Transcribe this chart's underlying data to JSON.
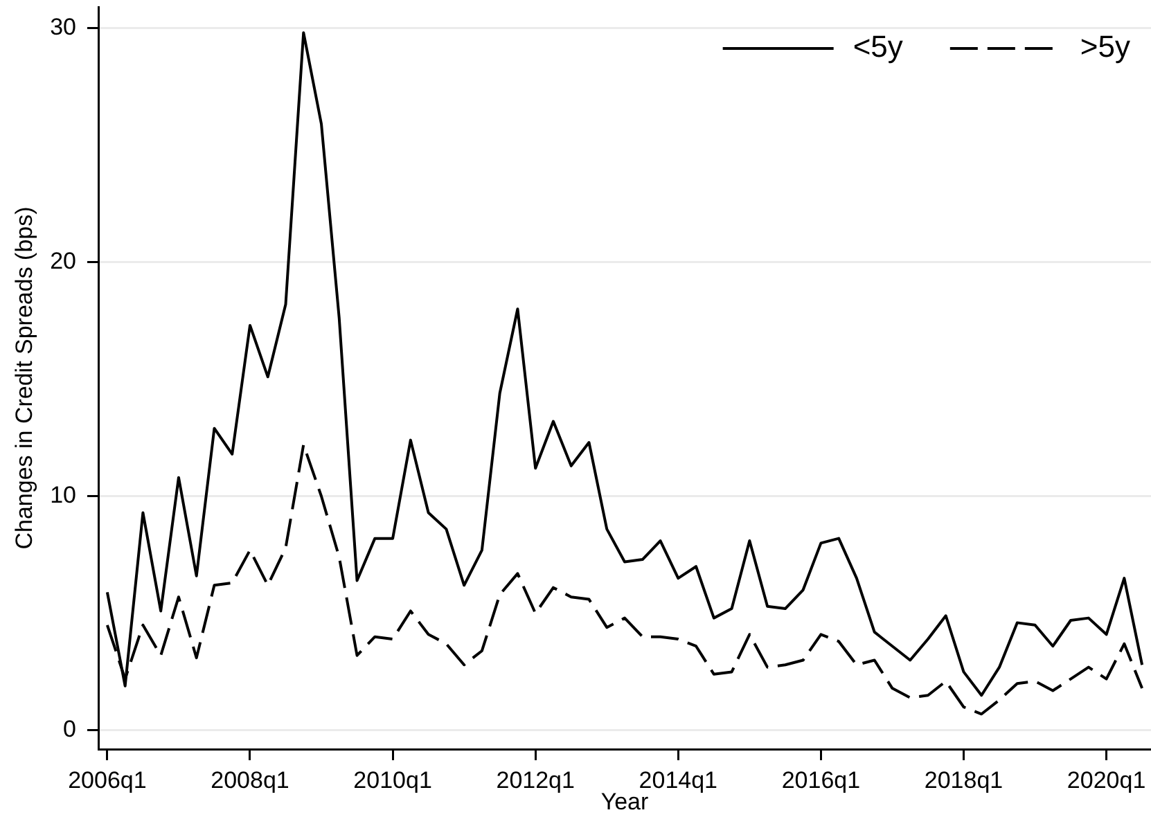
{
  "chart_data": {
    "type": "line",
    "xlabel": "Year",
    "ylabel": "Changes in Credit Spreads (bps)",
    "categories": [
      "2006q1",
      null,
      null,
      null,
      null,
      null,
      null,
      null,
      "2008q1",
      null,
      null,
      null,
      null,
      null,
      null,
      null,
      "2010q1",
      null,
      null,
      null,
      null,
      null,
      null,
      null,
      "2012q1",
      null,
      null,
      null,
      null,
      null,
      null,
      null,
      "2014q1",
      null,
      null,
      null,
      null,
      null,
      null,
      null,
      "2016q1",
      null,
      null,
      null,
      null,
      null,
      null,
      null,
      "2018q1",
      null,
      null,
      null,
      null,
      null,
      null,
      null,
      "2020q1",
      null,
      null
    ],
    "series": [
      {
        "name": "<5y",
        "color": "#000000",
        "line_style": "solid",
        "values": [
          5.9,
          1.9,
          9.3,
          5.1,
          10.8,
          6.6,
          12.9,
          11.8,
          17.3,
          15.1,
          18.2,
          29.8,
          25.9,
          17.6,
          6.4,
          8.2,
          8.2,
          12.4,
          9.3,
          8.6,
          6.2,
          7.7,
          14.4,
          18.0,
          11.2,
          13.2,
          11.3,
          12.3,
          8.6,
          7.2,
          7.3,
          8.1,
          6.5,
          7.0,
          4.8,
          5.2,
          8.1,
          5.3,
          5.2,
          6.0,
          8.0,
          8.2,
          6.5,
          4.2,
          3.6,
          3.0,
          3.9,
          4.9,
          2.5,
          1.5,
          2.7,
          4.6,
          4.5,
          3.6,
          4.7,
          4.8,
          4.1,
          6.5,
          2.8
        ]
      },
      {
        "name": ">5y",
        "color": "#000000",
        "line_style": "dashed",
        "values": [
          4.5,
          2.2,
          4.5,
          3.2,
          5.7,
          3.1,
          6.2,
          6.3,
          7.7,
          6.2,
          7.8,
          12.2,
          10.0,
          7.4,
          3.2,
          4.0,
          3.9,
          5.1,
          4.1,
          3.7,
          2.8,
          3.4,
          5.8,
          6.7,
          5.0,
          6.1,
          5.7,
          5.6,
          4.4,
          4.8,
          4.0,
          4.0,
          3.9,
          3.6,
          2.4,
          2.5,
          4.1,
          2.7,
          2.8,
          3.0,
          4.1,
          3.8,
          2.8,
          3.0,
          1.8,
          1.4,
          1.5,
          2.1,
          1.0,
          0.7,
          1.3,
          2.0,
          2.1,
          1.7,
          2.2,
          2.7,
          2.2,
          3.7,
          1.8
        ]
      }
    ],
    "ylim": [
      -0.8,
      30.9
    ],
    "yticks": [
      0,
      10,
      20,
      30
    ],
    "grid": "y",
    "legend": "top right",
    "marker": "none"
  }
}
